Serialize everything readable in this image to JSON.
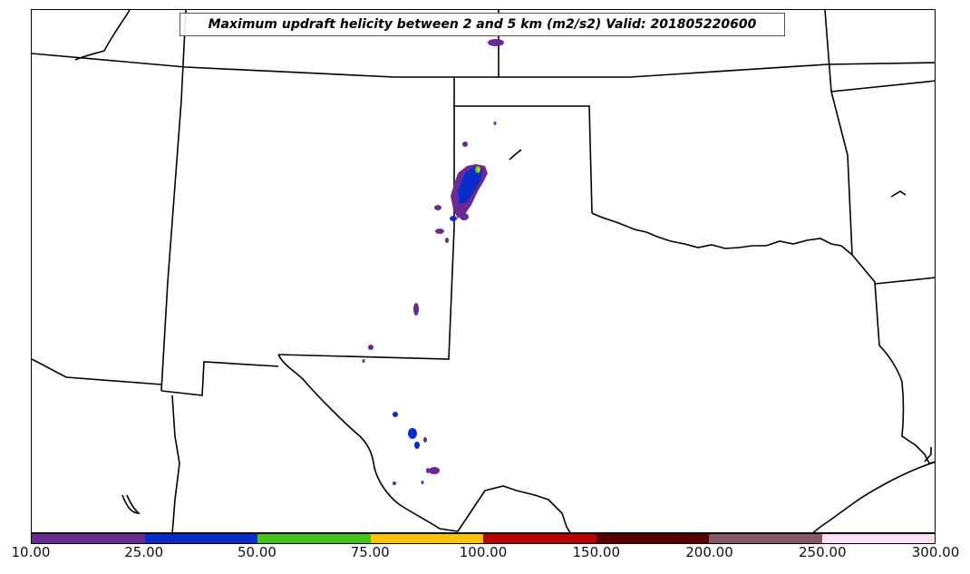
{
  "title": "Maximum updraft helicity between 2 and 5 km (m2/s2) Valid: 201805220600",
  "colorbar": {
    "ticks": [
      "10.00",
      "25.00",
      "50.00",
      "75.00",
      "100.00",
      "150.00",
      "200.00",
      "250.00",
      "300.00"
    ],
    "colors": [
      "#6a2a91",
      "#0a2ccc",
      "#44c41a",
      "#ffc400",
      "#bb0000",
      "#5a0000",
      "#8a5565",
      "#fbe1f5"
    ]
  },
  "field_colors": {
    "level_10_25": "#6a2a91",
    "level_25_50": "#0a2ccc",
    "level_50_75": "#44c41a",
    "level_75_100": "#ffc400"
  }
}
